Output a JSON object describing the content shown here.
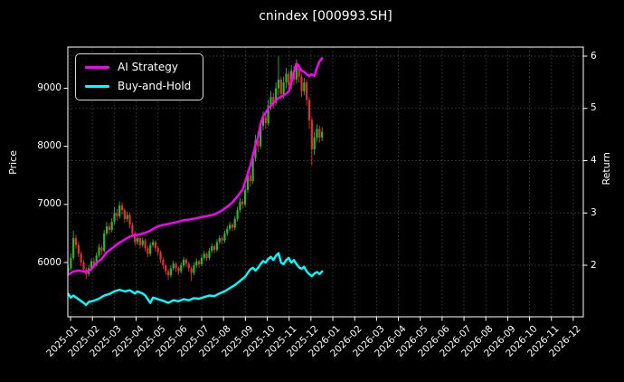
{
  "title": "cnindex [000993.SH]",
  "axes": {
    "left": {
      "label": "Price",
      "ticks": [
        "6000",
        "7000",
        "8000",
        "9000"
      ]
    },
    "right": {
      "label": "Return",
      "ticks": [
        "2",
        "3",
        "4",
        "5",
        "6"
      ]
    },
    "x": {
      "ticks": [
        "2025-01",
        "2025-02",
        "2025-03",
        "2025-04",
        "2025-05",
        "2025-06",
        "2025-07",
        "2025-08",
        "2025-09",
        "2025-10",
        "2025-11",
        "2025-12",
        "2026-01",
        "2026-02",
        "2026-03",
        "2026-04",
        "2026-05",
        "2026-06",
        "2026-07",
        "2026-08",
        "2026-09",
        "2026-10",
        "2026-11",
        "2026-12"
      ]
    }
  },
  "legend": [
    {
      "label": "AI Strategy",
      "color": "#ff00ff"
    },
    {
      "label": "Buy-and-Hold",
      "color": "#00ffff"
    }
  ],
  "colors": {
    "background": "#000000",
    "text": "#ffffff",
    "grid": "#3a3a3a",
    "spine": "#ffffff",
    "candle_up": "#2db52d",
    "candle_down": "#e03030",
    "ai_line": "#ff00ff",
    "bh_line": "#00ffff"
  },
  "chart_data": {
    "type": "mixed",
    "title": "cnindex [000993.SH]",
    "ylabel_left": "Price",
    "ylabel_right": "Return",
    "ylim_price": [
      5065,
      9710
    ],
    "ylim_return": [
      1.01,
      6.17
    ],
    "x_tick_labels": [
      "2025-01",
      "2025-02",
      "2025-03",
      "2025-04",
      "2025-05",
      "2025-06",
      "2025-07",
      "2025-08",
      "2025-09",
      "2025-10",
      "2025-11",
      "2025-12",
      "2026-01",
      "2026-02",
      "2026-03",
      "2026-04",
      "2026-05",
      "2026-06",
      "2026-07",
      "2026-08",
      "2026-09",
      "2026-10",
      "2026-11",
      "2026-12"
    ],
    "price_ticks": [
      6000,
      7000,
      8000,
      9000
    ],
    "return_ticks": [
      2,
      3,
      4,
      5,
      6
    ],
    "grid": "dotted, on return-axis horizontals and monthly verticals",
    "legend_position": "upper left",
    "data_span_note": "candles and lines cover 2025-01 through late 2025-12 only",
    "candles_ohlc": [
      [
        5850,
        5960,
        5780,
        5900
      ],
      [
        5900,
        6160,
        5860,
        6080
      ],
      [
        6080,
        6550,
        6050,
        6420
      ],
      [
        6420,
        6480,
        6240,
        6300
      ],
      [
        6300,
        6360,
        6090,
        6150
      ],
      [
        6150,
        6190,
        5930,
        6000
      ],
      [
        6000,
        6040,
        5820,
        5880
      ],
      [
        5880,
        5920,
        5720,
        5800
      ],
      [
        5800,
        5960,
        5760,
        5900
      ],
      [
        5900,
        6070,
        5860,
        6020
      ],
      [
        6020,
        6080,
        5900,
        5960
      ],
      [
        5960,
        6170,
        5930,
        6120
      ],
      [
        6120,
        6320,
        6080,
        6260
      ],
      [
        6260,
        6300,
        6130,
        6200
      ],
      [
        6200,
        6560,
        6170,
        6500
      ],
      [
        6500,
        6700,
        6460,
        6620
      ],
      [
        6620,
        6680,
        6490,
        6560
      ],
      [
        6560,
        6760,
        6520,
        6700
      ],
      [
        6700,
        6950,
        6650,
        6850
      ],
      [
        6850,
        6920,
        6720,
        6800
      ],
      [
        6800,
        7050,
        6760,
        6980
      ],
      [
        6980,
        7030,
        6820,
        6900
      ],
      [
        6900,
        6940,
        6680,
        6750
      ],
      [
        6750,
        6880,
        6700,
        6820
      ],
      [
        6820,
        6860,
        6590,
        6650
      ],
      [
        6650,
        6690,
        6440,
        6500
      ],
      [
        6500,
        6540,
        6290,
        6350
      ],
      [
        6350,
        6480,
        6300,
        6420
      ],
      [
        6420,
        6450,
        6240,
        6300
      ],
      [
        6300,
        6430,
        6260,
        6380
      ],
      [
        6380,
        6410,
        6190,
        6250
      ],
      [
        6250,
        6290,
        6090,
        6150
      ],
      [
        6150,
        6350,
        6110,
        6300
      ],
      [
        6300,
        6400,
        6260,
        6350
      ],
      [
        6350,
        6380,
        6190,
        6250
      ],
      [
        6250,
        6290,
        6120,
        6180
      ],
      [
        6180,
        6210,
        5990,
        6050
      ],
      [
        6050,
        6090,
        5890,
        5950
      ],
      [
        5950,
        5990,
        5790,
        5850
      ],
      [
        5850,
        5890,
        5700,
        5780
      ],
      [
        5780,
        5950,
        5740,
        5900
      ],
      [
        5900,
        6030,
        5860,
        5980
      ],
      [
        5980,
        6010,
        5840,
        5900
      ],
      [
        5900,
        5930,
        5790,
        5850
      ],
      [
        5850,
        6000,
        5810,
        5950
      ],
      [
        5950,
        6100,
        5910,
        6050
      ],
      [
        6050,
        6080,
        5920,
        5980
      ],
      [
        5980,
        6010,
        5840,
        5900
      ],
      [
        5900,
        5930,
        5680,
        5820
      ],
      [
        5820,
        6000,
        5780,
        5950
      ],
      [
        5950,
        6070,
        5910,
        6020
      ],
      [
        6020,
        6050,
        5910,
        5970
      ],
      [
        5970,
        6130,
        5930,
        6080
      ],
      [
        6080,
        6200,
        6040,
        6150
      ],
      [
        6150,
        6180,
        6020,
        6080
      ],
      [
        6080,
        6250,
        6040,
        6200
      ],
      [
        6200,
        6330,
        6160,
        6280
      ],
      [
        6280,
        6310,
        6160,
        6220
      ],
      [
        6220,
        6400,
        6180,
        6350
      ],
      [
        6350,
        6470,
        6310,
        6420
      ],
      [
        6420,
        6450,
        6320,
        6380
      ],
      [
        6380,
        6550,
        6340,
        6500
      ],
      [
        6500,
        6630,
        6460,
        6580
      ],
      [
        6580,
        6700,
        6540,
        6650
      ],
      [
        6650,
        6680,
        6540,
        6600
      ],
      [
        6600,
        6800,
        6560,
        6750
      ],
      [
        6750,
        6960,
        6710,
        6900
      ],
      [
        6900,
        7110,
        6860,
        7050
      ],
      [
        7050,
        7090,
        6930,
        7000
      ],
      [
        7000,
        7330,
        6960,
        7250
      ],
      [
        7250,
        7590,
        7200,
        7500
      ],
      [
        7500,
        7560,
        7300,
        7400
      ],
      [
        7400,
        7900,
        7350,
        7800
      ],
      [
        7800,
        8200,
        7740,
        8100
      ],
      [
        8100,
        8170,
        7900,
        8000
      ],
      [
        8000,
        8450,
        7950,
        8350
      ],
      [
        8350,
        8600,
        8280,
        8500
      ],
      [
        8500,
        8570,
        8300,
        8400
      ],
      [
        8400,
        8800,
        8350,
        8700
      ],
      [
        8700,
        8950,
        8620,
        8850
      ],
      [
        8850,
        8920,
        8650,
        8750
      ],
      [
        8750,
        9100,
        8700,
        9000
      ],
      [
        9000,
        9550,
        8870,
        9150
      ],
      [
        9150,
        9200,
        8800,
        8900
      ],
      [
        8900,
        9200,
        8820,
        9100
      ],
      [
        9100,
        9350,
        9000,
        9250
      ],
      [
        9250,
        9300,
        8950,
        9050
      ],
      [
        9050,
        9400,
        8980,
        9300
      ],
      [
        9300,
        9380,
        9050,
        9150
      ],
      [
        9150,
        9500,
        9080,
        9380
      ],
      [
        9380,
        9420,
        9100,
        9200
      ],
      [
        9200,
        9250,
        8850,
        8950
      ],
      [
        8950,
        9180,
        8880,
        9100
      ],
      [
        9100,
        9150,
        8700,
        8800
      ],
      [
        8800,
        8850,
        8300,
        8450
      ],
      [
        8450,
        8500,
        7670,
        7950
      ],
      [
        7950,
        8250,
        7850,
        8150
      ],
      [
        8150,
        8380,
        8080,
        8300
      ],
      [
        8300,
        8360,
        8060,
        8150
      ],
      [
        8150,
        8330,
        8090,
        8250
      ]
    ],
    "series": [
      {
        "name": "AI Strategy",
        "axis": "return",
        "color": "#ff00ff",
        "points": [
          [
            0,
            1.82
          ],
          [
            2,
            1.88
          ],
          [
            4,
            1.9
          ],
          [
            7,
            1.87
          ],
          [
            9,
            1.92
          ],
          [
            11,
            2.05
          ],
          [
            13,
            2.12
          ],
          [
            15,
            2.25
          ],
          [
            17,
            2.32
          ],
          [
            19,
            2.4
          ],
          [
            21,
            2.46
          ],
          [
            23,
            2.52
          ],
          [
            25,
            2.57
          ],
          [
            27,
            2.58
          ],
          [
            30,
            2.62
          ],
          [
            32,
            2.66
          ],
          [
            34,
            2.72
          ],
          [
            36,
            2.76
          ],
          [
            39,
            2.79
          ],
          [
            42,
            2.82
          ],
          [
            45,
            2.86
          ],
          [
            48,
            2.88
          ],
          [
            51,
            2.91
          ],
          [
            54,
            2.94
          ],
          [
            57,
            2.97
          ],
          [
            60,
            3.05
          ],
          [
            62,
            3.12
          ],
          [
            64,
            3.2
          ],
          [
            66,
            3.32
          ],
          [
            68,
            3.45
          ],
          [
            70,
            3.75
          ],
          [
            71,
            3.9
          ],
          [
            72,
            4.1
          ],
          [
            73,
            4.3
          ],
          [
            74,
            4.45
          ],
          [
            75,
            4.7
          ],
          [
            76,
            4.85
          ],
          [
            77,
            4.92
          ],
          [
            78,
            5.0
          ],
          [
            80,
            5.1
          ],
          [
            82,
            5.2
          ],
          [
            84,
            5.25
          ],
          [
            86,
            5.32
          ],
          [
            87,
            5.5
          ],
          [
            88,
            5.7
          ],
          [
            89,
            5.86
          ],
          [
            90,
            5.8
          ],
          [
            91,
            5.72
          ],
          [
            92,
            5.7
          ],
          [
            93,
            5.65
          ],
          [
            94,
            5.62
          ],
          [
            95,
            5.65
          ],
          [
            96,
            5.62
          ],
          [
            97,
            5.78
          ],
          [
            98,
            5.9
          ],
          [
            99,
            5.96
          ]
        ]
      },
      {
        "name": "Buy-and-Hold",
        "axis": "return",
        "color": "#00ffff",
        "points": [
          [
            0,
            1.45
          ],
          [
            1,
            1.38
          ],
          [
            2,
            1.42
          ],
          [
            4,
            1.35
          ],
          [
            6,
            1.28
          ],
          [
            7,
            1.24
          ],
          [
            8,
            1.3
          ],
          [
            10,
            1.32
          ],
          [
            12,
            1.36
          ],
          [
            14,
            1.42
          ],
          [
            16,
            1.45
          ],
          [
            18,
            1.5
          ],
          [
            20,
            1.53
          ],
          [
            22,
            1.5
          ],
          [
            24,
            1.52
          ],
          [
            26,
            1.46
          ],
          [
            27,
            1.5
          ],
          [
            29,
            1.46
          ],
          [
            30,
            1.42
          ],
          [
            31,
            1.35
          ],
          [
            32,
            1.28
          ],
          [
            33,
            1.38
          ],
          [
            35,
            1.35
          ],
          [
            37,
            1.32
          ],
          [
            39,
            1.28
          ],
          [
            41,
            1.33
          ],
          [
            43,
            1.31
          ],
          [
            45,
            1.35
          ],
          [
            47,
            1.33
          ],
          [
            49,
            1.37
          ],
          [
            51,
            1.36
          ],
          [
            53,
            1.39
          ],
          [
            55,
            1.42
          ],
          [
            57,
            1.41
          ],
          [
            59,
            1.46
          ],
          [
            61,
            1.5
          ],
          [
            63,
            1.56
          ],
          [
            65,
            1.62
          ],
          [
            67,
            1.7
          ],
          [
            69,
            1.78
          ],
          [
            70,
            1.85
          ],
          [
            71,
            1.92
          ],
          [
            72,
            1.95
          ],
          [
            73,
            1.9
          ],
          [
            74,
            1.95
          ],
          [
            75,
            2.02
          ],
          [
            76,
            2.08
          ],
          [
            77,
            2.05
          ],
          [
            78,
            2.12
          ],
          [
            79,
            2.16
          ],
          [
            80,
            2.1
          ],
          [
            81,
            2.18
          ],
          [
            82,
            2.23
          ],
          [
            83,
            2.05
          ],
          [
            84,
            2.02
          ],
          [
            85,
            2.1
          ],
          [
            86,
            2.14
          ],
          [
            87,
            2.05
          ],
          [
            88,
            2.1
          ],
          [
            89,
            2.02
          ],
          [
            90,
            1.96
          ],
          [
            91,
            1.93
          ],
          [
            92,
            1.97
          ],
          [
            93,
            1.88
          ],
          [
            94,
            1.83
          ],
          [
            95,
            1.79
          ],
          [
            96,
            1.84
          ],
          [
            97,
            1.87
          ],
          [
            98,
            1.83
          ],
          [
            99,
            1.88
          ]
        ]
      }
    ]
  }
}
